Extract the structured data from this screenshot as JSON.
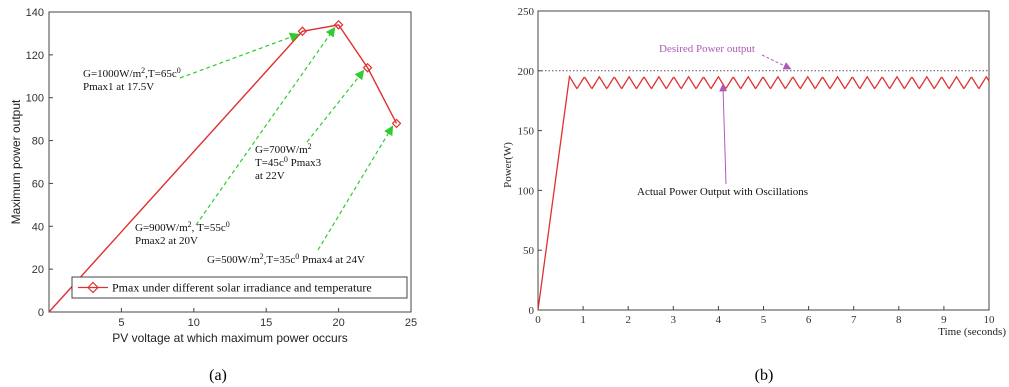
{
  "chart_data": [
    {
      "type": "line",
      "caption": "(a)",
      "xlabel": "PV voltage at which maximum power occurs",
      "ylabel": "Maximum power output",
      "xlim": [
        0,
        25
      ],
      "ylim": [
        0,
        140
      ],
      "xticks": [
        5,
        10,
        15,
        20,
        25
      ],
      "yticks": [
        0,
        20,
        40,
        60,
        80,
        100,
        120,
        140
      ],
      "series": [
        {
          "name": "Pmax under different solar irradiance and temperature",
          "color": "#e03030",
          "marker": "diamond",
          "x": [
            0,
            17.5,
            20,
            22,
            24
          ],
          "y": [
            0,
            131,
            134,
            114,
            88
          ]
        }
      ],
      "legend": "bottom-right",
      "annotations": [
        {
          "lines": [
            "G=1000W/m2,T=65c0",
            "Pmax1 at 17.5V"
          ],
          "target_x": 17.5,
          "target_y": 131
        },
        {
          "lines": [
            "G=900W/m2, T=55c0",
            "Pmax2 at 20V"
          ],
          "target_x": 20,
          "target_y": 134
        },
        {
          "lines": [
            "G=700W/m2",
            "T=45c0 Pmax3",
            "at 22V"
          ],
          "target_x": 22,
          "target_y": 114
        },
        {
          "lines": [
            "G=500W/m2,T=35c0 Pmax4 at 24V"
          ],
          "target_x": 24,
          "target_y": 88
        }
      ]
    },
    {
      "type": "line",
      "caption": "(b)",
      "xlabel": "Time (seconds)",
      "ylabel": "Power(W)",
      "xlim": [
        0,
        10
      ],
      "ylim": [
        0,
        250
      ],
      "xticks": [
        0,
        1,
        2,
        3,
        4,
        5,
        6,
        7,
        8,
        9,
        10
      ],
      "yticks": [
        0,
        50,
        100,
        150,
        200,
        250
      ],
      "series": [
        {
          "name": "Actual Power Output with Oscillations",
          "color": "#e03030",
          "rise": [
            [
              0,
              0
            ],
            [
              0.7,
              196
            ]
          ],
          "oscillation_mean": 190,
          "oscillation_amplitude": 5,
          "oscillation_period": 0.33,
          "x_end": 10
        },
        {
          "name": "Desired Power output",
          "color": "#555555",
          "style": "dotted",
          "y": 200
        }
      ],
      "annotations": [
        {
          "text": "Desired Power output",
          "target_x": 5.6,
          "target_y": 200
        },
        {
          "text": "Actual Power Output with Oscillations",
          "target_x": 4.1,
          "target_y": 192
        }
      ]
    }
  ]
}
